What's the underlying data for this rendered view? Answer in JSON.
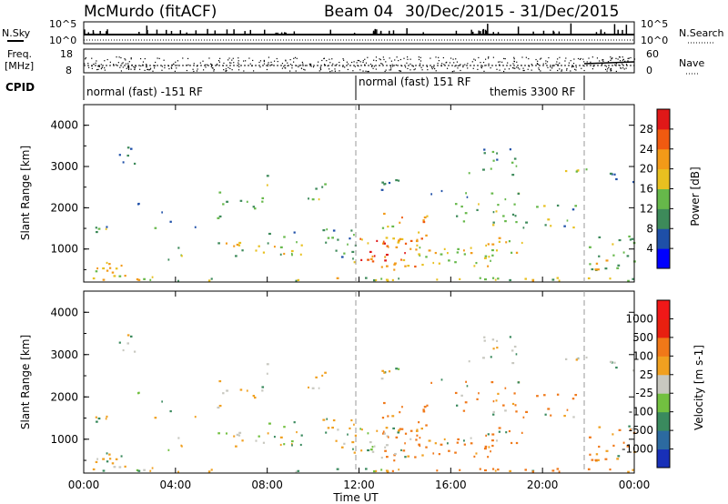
{
  "title": {
    "station": "McMurdo (fitACF)",
    "beam": "Beam 04",
    "dates": "30/Dec/2015 - 31/Dec/2015"
  },
  "header": {
    "nsky_label": "N.Sky",
    "nsearch_label": "N.Search",
    "count_ticks_top": [
      "10^5",
      "10^0"
    ],
    "freq_label_top": "Freq.",
    "freq_label_bottom": "[MHz]",
    "freq_ticks": [
      "18",
      "8"
    ],
    "nave_label": "Nave",
    "nave_ticks": [
      "60",
      "0"
    ],
    "cpid_label": "CPID",
    "cpid_segments": [
      "normal (fast) -151 RF",
      "normal (fast) 151 RF",
      "themis 3300 RF"
    ]
  },
  "chart_data": [
    {
      "type": "heatmap",
      "name": "power",
      "ylabel": "Slant Range [km]",
      "yticks": [
        "1000",
        "2000",
        "3000",
        "4000"
      ],
      "ylim": [
        200,
        4500
      ],
      "xlim": [
        0,
        24
      ],
      "colorbar_label": "Power [dB]",
      "colorbar_ticks": [
        "4",
        "8",
        "12",
        "16",
        "20",
        "24",
        "28"
      ],
      "colors": [
        "#0000ff",
        "#1e4fa8",
        "#3d8a5a",
        "#66b84a",
        "#e8c020",
        "#f29a18",
        "#f05a10",
        "#e01818"
      ]
    },
    {
      "type": "heatmap",
      "name": "velocity",
      "ylabel": "Slant Range [km]",
      "yticks": [
        "1000",
        "2000",
        "3000",
        "4000"
      ],
      "ylim": [
        200,
        4500
      ],
      "xlim": [
        0,
        24
      ],
      "colorbar_label": "Velocity [m s-1]",
      "colorbar_ticks": [
        "1000",
        "500",
        "100",
        "25",
        "-25",
        "-100",
        "-500",
        "-1000"
      ],
      "colors": [
        "#1830b8",
        "#2c6aa0",
        "#3a8a5e",
        "#72c040",
        "#c8c8c0",
        "#f0a020",
        "#f07818",
        "#e82010",
        "#f01818"
      ]
    }
  ],
  "xaxis": {
    "ticks": [
      "00:00",
      "04:00",
      "08:00",
      "12:00",
      "16:00",
      "20:00",
      "00:00"
    ],
    "label": "Time UT"
  }
}
